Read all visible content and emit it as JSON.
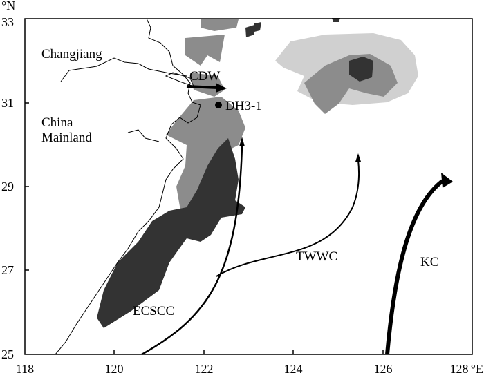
{
  "axes": {
    "lat_unit": "°N",
    "lon_unit": "°E",
    "lat_ticks": [
      "25",
      "27",
      "29",
      "31",
      "33"
    ],
    "lon_ticks": [
      "118",
      "120",
      "122",
      "124",
      "126",
      "128"
    ]
  },
  "labels": {
    "river": "Changjiang",
    "land_line1": "China",
    "land_line2": "Mainland",
    "cdw": "CDW",
    "station": "DH3-1",
    "twwc": "TWWC",
    "ecscc": "ECSCC",
    "kc": "KC"
  },
  "colors": {
    "dark": "#333333",
    "mid": "#8c8c8c",
    "light": "#d0d0d0",
    "line": "#000000"
  }
}
